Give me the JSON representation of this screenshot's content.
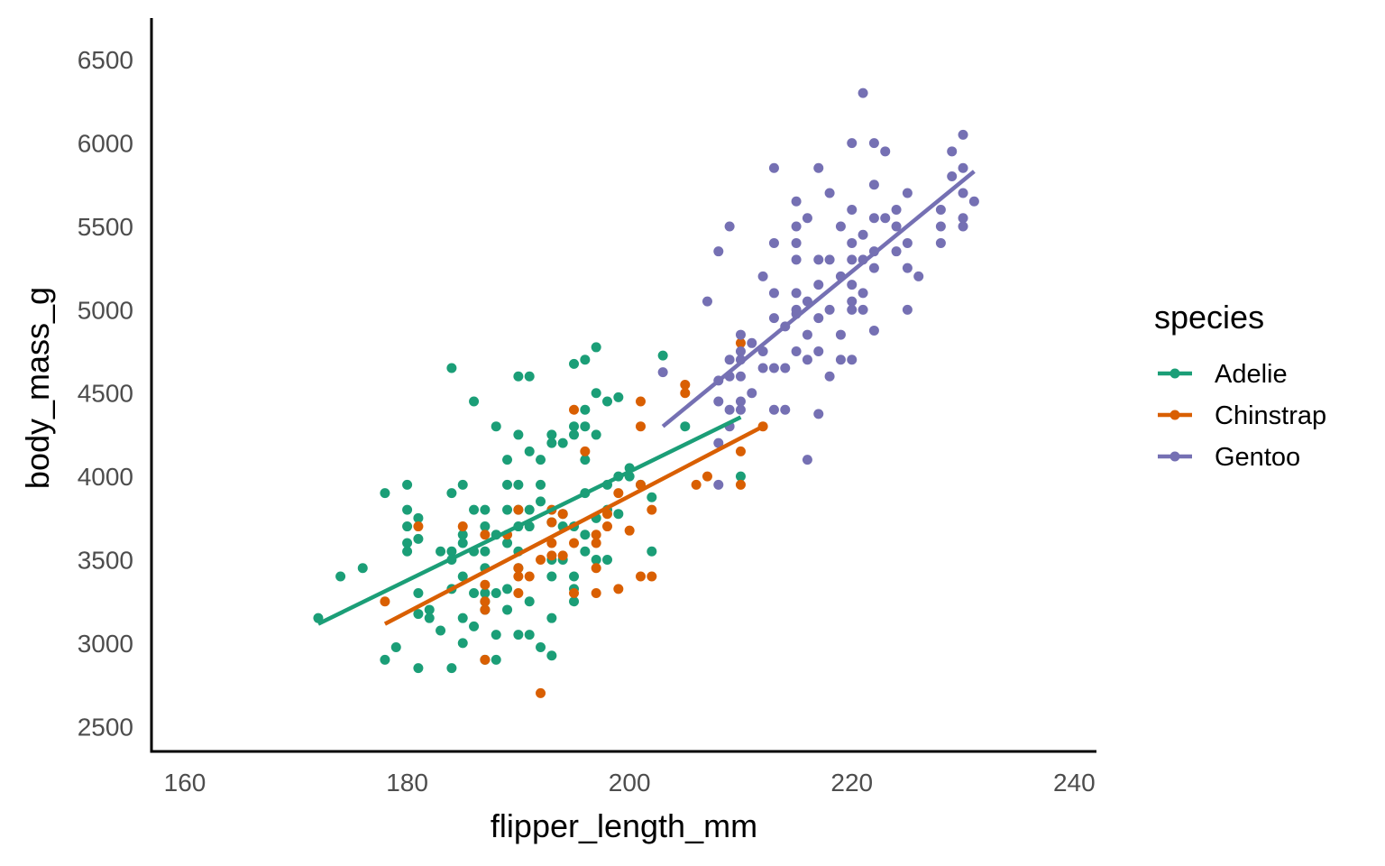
{
  "chart_data": {
    "type": "scatter",
    "xlabel": "flipper_length_mm",
    "ylabel": "body_mass_g",
    "xlim": [
      157,
      242
    ],
    "ylim": [
      2350,
      6750
    ],
    "xticks": [
      160,
      180,
      200,
      220,
      240
    ],
    "yticks": [
      2500,
      3000,
      3500,
      4000,
      4500,
      5000,
      5500,
      6000,
      6500
    ],
    "grid": false,
    "legend": {
      "title": "species",
      "position": "right"
    },
    "series": [
      {
        "name": "Adelie",
        "color": "#1b9e77",
        "trend": {
          "x": [
            172,
            210
          ],
          "y": [
            3115,
            4355
          ]
        },
        "points": [
          [
            172,
            3150
          ],
          [
            174,
            3400
          ],
          [
            176,
            3450
          ],
          [
            178,
            3900
          ],
          [
            178,
            2900
          ],
          [
            179,
            2975
          ],
          [
            180,
            3950
          ],
          [
            180,
            3800
          ],
          [
            180,
            3700
          ],
          [
            180,
            3600
          ],
          [
            180,
            3550
          ],
          [
            181,
            3750
          ],
          [
            181,
            3625
          ],
          [
            181,
            3300
          ],
          [
            181,
            2850
          ],
          [
            181,
            3175
          ],
          [
            182,
            3200
          ],
          [
            182,
            3150
          ],
          [
            183,
            3075
          ],
          [
            183,
            3550
          ],
          [
            184,
            4650
          ],
          [
            184,
            3550
          ],
          [
            184,
            3900
          ],
          [
            184,
            3500
          ],
          [
            184,
            3325
          ],
          [
            184,
            2850
          ],
          [
            185,
            3950
          ],
          [
            185,
            3650
          ],
          [
            185,
            3600
          ],
          [
            185,
            3400
          ],
          [
            185,
            3150
          ],
          [
            185,
            3000
          ],
          [
            186,
            4450
          ],
          [
            186,
            3800
          ],
          [
            186,
            3550
          ],
          [
            186,
            3300
          ],
          [
            186,
            3100
          ],
          [
            187,
            3800
          ],
          [
            187,
            3700
          ],
          [
            187,
            3550
          ],
          [
            187,
            3450
          ],
          [
            187,
            3300
          ],
          [
            187,
            3250
          ],
          [
            187,
            3200
          ],
          [
            187,
            2900
          ],
          [
            188,
            4300
          ],
          [
            188,
            3650
          ],
          [
            188,
            3300
          ],
          [
            188,
            3050
          ],
          [
            188,
            2900
          ],
          [
            189,
            4100
          ],
          [
            189,
            3950
          ],
          [
            189,
            3800
          ],
          [
            189,
            3600
          ],
          [
            189,
            3325
          ],
          [
            189,
            3200
          ],
          [
            190,
            4600
          ],
          [
            190,
            4250
          ],
          [
            190,
            3950
          ],
          [
            190,
            3800
          ],
          [
            190,
            3700
          ],
          [
            190,
            3450
          ],
          [
            190,
            3550
          ],
          [
            190,
            3050
          ],
          [
            191,
            4600
          ],
          [
            191,
            4150
          ],
          [
            191,
            3700
          ],
          [
            191,
            3800
          ],
          [
            191,
            3250
          ],
          [
            191,
            3050
          ],
          [
            192,
            4100
          ],
          [
            192,
            3950
          ],
          [
            192,
            3850
          ],
          [
            192,
            2975
          ],
          [
            193,
            4250
          ],
          [
            193,
            4200
          ],
          [
            193,
            3725
          ],
          [
            193,
            3500
          ],
          [
            193,
            3400
          ],
          [
            193,
            3150
          ],
          [
            193,
            2925
          ],
          [
            194,
            4200
          ],
          [
            194,
            3775
          ],
          [
            194,
            3700
          ],
          [
            194,
            3500
          ],
          [
            195,
            4675
          ],
          [
            195,
            4300
          ],
          [
            195,
            4250
          ],
          [
            195,
            3700
          ],
          [
            195,
            3400
          ],
          [
            195,
            3325
          ],
          [
            195,
            3250
          ],
          [
            196,
            4700
          ],
          [
            196,
            4400
          ],
          [
            196,
            4300
          ],
          [
            196,
            4100
          ],
          [
            196,
            3900
          ],
          [
            196,
            3650
          ],
          [
            196,
            3550
          ],
          [
            197,
            4775
          ],
          [
            197,
            4500
          ],
          [
            197,
            4250
          ],
          [
            197,
            3750
          ],
          [
            197,
            3500
          ],
          [
            198,
            4450
          ],
          [
            198,
            3950
          ],
          [
            198,
            3800
          ],
          [
            198,
            3500
          ],
          [
            199,
            4475
          ],
          [
            199,
            4000
          ],
          [
            199,
            3775
          ],
          [
            200,
            4050
          ],
          [
            200,
            4000
          ],
          [
            201,
            3950
          ],
          [
            202,
            3875
          ],
          [
            202,
            3550
          ],
          [
            203,
            4725
          ],
          [
            205,
            4300
          ],
          [
            210,
            4000
          ]
        ]
      },
      {
        "name": "Chinstrap",
        "color": "#d95f02",
        "trend": {
          "x": [
            178,
            212
          ],
          "y": [
            3115,
            4300
          ]
        },
        "points": [
          [
            178,
            3250
          ],
          [
            181,
            3700
          ],
          [
            185,
            3700
          ],
          [
            187,
            3650
          ],
          [
            187,
            3350
          ],
          [
            187,
            3250
          ],
          [
            187,
            3200
          ],
          [
            187,
            2900
          ],
          [
            189,
            3650
          ],
          [
            190,
            3800
          ],
          [
            190,
            3450
          ],
          [
            190,
            3400
          ],
          [
            190,
            3300
          ],
          [
            191,
            3400
          ],
          [
            192,
            3500
          ],
          [
            192,
            2700
          ],
          [
            193,
            3800
          ],
          [
            193,
            3725
          ],
          [
            193,
            3600
          ],
          [
            193,
            3525
          ],
          [
            194,
            3775
          ],
          [
            194,
            3525
          ],
          [
            195,
            4400
          ],
          [
            195,
            3600
          ],
          [
            195,
            3300
          ],
          [
            196,
            4150
          ],
          [
            197,
            3650
          ],
          [
            197,
            3600
          ],
          [
            197,
            3450
          ],
          [
            197,
            3300
          ],
          [
            198,
            3775
          ],
          [
            198,
            3700
          ],
          [
            199,
            3900
          ],
          [
            199,
            3325
          ],
          [
            200,
            3675
          ],
          [
            201,
            4450
          ],
          [
            201,
            4300
          ],
          [
            201,
            3950
          ],
          [
            201,
            3400
          ],
          [
            202,
            3800
          ],
          [
            202,
            3400
          ],
          [
            205,
            4550
          ],
          [
            205,
            4500
          ],
          [
            206,
            3950
          ],
          [
            207,
            4000
          ],
          [
            210,
            4800
          ],
          [
            210,
            4150
          ],
          [
            210,
            3950
          ],
          [
            212,
            4300
          ]
        ]
      },
      {
        "name": "Gentoo",
        "color": "#7570b3",
        "trend": {
          "x": [
            203,
            231
          ],
          "y": [
            4300,
            5830
          ]
        },
        "points": [
          [
            203,
            4625
          ],
          [
            207,
            5050
          ],
          [
            208,
            5350
          ],
          [
            208,
            4575
          ],
          [
            208,
            4450
          ],
          [
            208,
            4200
          ],
          [
            208,
            3950
          ],
          [
            209,
            5500
          ],
          [
            209,
            4700
          ],
          [
            209,
            4600
          ],
          [
            209,
            4400
          ],
          [
            209,
            4300
          ],
          [
            210,
            4850
          ],
          [
            210,
            4750
          ],
          [
            210,
            4700
          ],
          [
            210,
            4600
          ],
          [
            210,
            4450
          ],
          [
            210,
            4400
          ],
          [
            211,
            4800
          ],
          [
            211,
            4500
          ],
          [
            212,
            5200
          ],
          [
            212,
            4750
          ],
          [
            212,
            4650
          ],
          [
            213,
            5850
          ],
          [
            213,
            5400
          ],
          [
            213,
            5100
          ],
          [
            213,
            4950
          ],
          [
            213,
            4650
          ],
          [
            213,
            4400
          ],
          [
            214,
            4900
          ],
          [
            214,
            4650
          ],
          [
            214,
            4400
          ],
          [
            215,
            5650
          ],
          [
            215,
            5500
          ],
          [
            215,
            5400
          ],
          [
            215,
            5300
          ],
          [
            215,
            5100
          ],
          [
            215,
            5000
          ],
          [
            215,
            4975
          ],
          [
            215,
            4750
          ],
          [
            216,
            5550
          ],
          [
            216,
            5050
          ],
          [
            216,
            4850
          ],
          [
            216,
            4700
          ],
          [
            216,
            4100
          ],
          [
            217,
            5850
          ],
          [
            217,
            5300
          ],
          [
            217,
            5150
          ],
          [
            217,
            4950
          ],
          [
            217,
            4750
          ],
          [
            217,
            4375
          ],
          [
            218,
            5700
          ],
          [
            218,
            5300
          ],
          [
            218,
            5000
          ],
          [
            218,
            4600
          ],
          [
            219,
            5500
          ],
          [
            219,
            5200
          ],
          [
            219,
            4850
          ],
          [
            219,
            4700
          ],
          [
            220,
            6000
          ],
          [
            220,
            5600
          ],
          [
            220,
            5400
          ],
          [
            220,
            5300
          ],
          [
            220,
            5150
          ],
          [
            220,
            5050
          ],
          [
            220,
            5000
          ],
          [
            220,
            4700
          ],
          [
            221,
            6300
          ],
          [
            221,
            5450
          ],
          [
            221,
            5300
          ],
          [
            221,
            5100
          ],
          [
            221,
            5000
          ],
          [
            222,
            6000
          ],
          [
            222,
            5750
          ],
          [
            222,
            5550
          ],
          [
            222,
            5350
          ],
          [
            222,
            5250
          ],
          [
            222,
            4875
          ],
          [
            223,
            5950
          ],
          [
            223,
            5550
          ],
          [
            224,
            5600
          ],
          [
            224,
            5500
          ],
          [
            224,
            5350
          ],
          [
            225,
            5700
          ],
          [
            225,
            5400
          ],
          [
            225,
            5250
          ],
          [
            225,
            5000
          ],
          [
            226,
            5200
          ],
          [
            228,
            5600
          ],
          [
            228,
            5500
          ],
          [
            228,
            5400
          ],
          [
            229,
            5950
          ],
          [
            229,
            5800
          ],
          [
            230,
            6050
          ],
          [
            230,
            5850
          ],
          [
            230,
            5700
          ],
          [
            230,
            5550
          ],
          [
            230,
            5500
          ],
          [
            231,
            5650
          ]
        ]
      }
    ]
  }
}
